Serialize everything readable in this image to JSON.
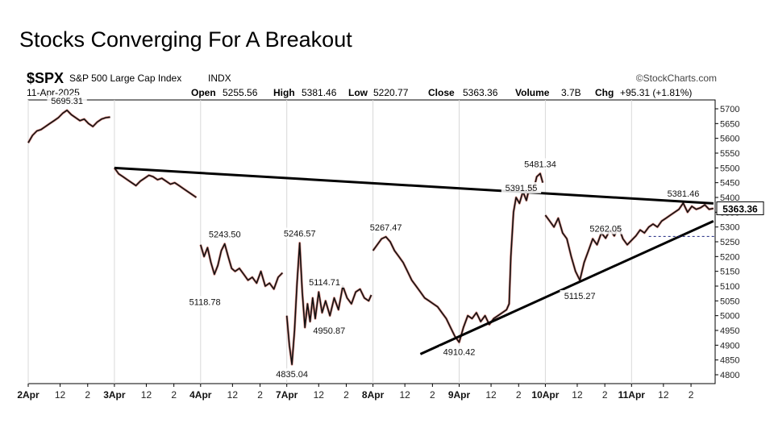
{
  "slide": {
    "title": "Stocks Converging For A Breakout"
  },
  "chart_data": {
    "type": "line",
    "symbol": "$SPX",
    "name": "S&P 500 Large Cap Index",
    "exchange": "INDX",
    "date": "11-Apr-2025",
    "source": "©StockCharts.com",
    "ohlc": {
      "open_label": "Open",
      "open": "5255.56",
      "high_label": "High",
      "high": "5381.46",
      "low_label": "Low",
      "low": "5220.77",
      "close_label": "Close",
      "close": "5363.36",
      "volume_label": "Volume",
      "volume": "3.7B",
      "chg_label": "Chg",
      "chg": "+95.31 (+1.81%)"
    },
    "last_price": "5363.36",
    "ylim": [
      4770,
      5730
    ],
    "y_ticks": [
      5700,
      5650,
      5600,
      5550,
      5500,
      5450,
      5400,
      5350,
      5300,
      5250,
      5200,
      5150,
      5100,
      5050,
      5000,
      4950,
      4900,
      4850,
      4800
    ],
    "x_ticks": [
      {
        "label": "2Apr",
        "t": 0.0,
        "bold": true
      },
      {
        "label": "12",
        "t": 0.37
      },
      {
        "label": "2",
        "t": 0.69
      },
      {
        "label": "3Apr",
        "t": 1.0,
        "bold": true
      },
      {
        "label": "12",
        "t": 1.37
      },
      {
        "label": "2",
        "t": 1.69
      },
      {
        "label": "4Apr",
        "t": 2.0,
        "bold": true
      },
      {
        "label": "12",
        "t": 2.37
      },
      {
        "label": "2",
        "t": 2.69
      },
      {
        "label": "7Apr",
        "t": 3.0,
        "bold": true
      },
      {
        "label": "12",
        "t": 3.37
      },
      {
        "label": "2",
        "t": 3.69
      },
      {
        "label": "8Apr",
        "t": 4.0,
        "bold": true
      },
      {
        "label": "12",
        "t": 4.37
      },
      {
        "label": "2",
        "t": 4.69
      },
      {
        "label": "9Apr",
        "t": 5.0,
        "bold": true
      },
      {
        "label": "12",
        "t": 5.37
      },
      {
        "label": "2",
        "t": 5.69
      },
      {
        "label": "10Apr",
        "t": 6.0,
        "bold": true
      },
      {
        "label": "12",
        "t": 6.37
      },
      {
        "label": "2",
        "t": 6.69
      },
      {
        "label": "11Apr",
        "t": 7.0,
        "bold": true
      },
      {
        "label": "12",
        "t": 7.37
      },
      {
        "label": "2",
        "t": 7.69
      }
    ],
    "xlim": [
      0,
      7.97
    ],
    "series": [
      {
        "segments": [
          [
            [
              0.0,
              5585
            ],
            [
              0.05,
              5610
            ],
            [
              0.1,
              5625
            ],
            [
              0.15,
              5630
            ],
            [
              0.2,
              5640
            ],
            [
              0.25,
              5650
            ],
            [
              0.3,
              5660
            ],
            [
              0.35,
              5670
            ],
            [
              0.4,
              5685
            ],
            [
              0.45,
              5695
            ],
            [
              0.5,
              5680
            ],
            [
              0.55,
              5670
            ],
            [
              0.6,
              5660
            ],
            [
              0.65,
              5665
            ],
            [
              0.7,
              5650
            ],
            [
              0.75,
              5640
            ],
            [
              0.8,
              5655
            ],
            [
              0.85,
              5665
            ],
            [
              0.9,
              5670
            ],
            [
              0.95,
              5672
            ]
          ],
          [
            [
              1.0,
              5500
            ],
            [
              1.05,
              5480
            ],
            [
              1.1,
              5470
            ],
            [
              1.15,
              5460
            ],
            [
              1.2,
              5450
            ],
            [
              1.25,
              5440
            ],
            [
              1.3,
              5455
            ],
            [
              1.35,
              5465
            ],
            [
              1.4,
              5475
            ],
            [
              1.45,
              5470
            ],
            [
              1.5,
              5460
            ],
            [
              1.55,
              5465
            ],
            [
              1.6,
              5455
            ],
            [
              1.65,
              5445
            ],
            [
              1.7,
              5450
            ],
            [
              1.75,
              5440
            ],
            [
              1.8,
              5430
            ],
            [
              1.85,
              5420
            ],
            [
              1.9,
              5410
            ],
            [
              1.95,
              5400
            ]
          ],
          [
            [
              2.0,
              5240
            ],
            [
              2.04,
              5200
            ],
            [
              2.08,
              5230
            ],
            [
              2.12,
              5180
            ],
            [
              2.16,
              5140
            ],
            [
              2.2,
              5170
            ],
            [
              2.24,
              5220
            ],
            [
              2.28,
              5243
            ],
            [
              2.32,
              5200
            ],
            [
              2.36,
              5160
            ],
            [
              2.4,
              5150
            ],
            [
              2.45,
              5160
            ],
            [
              2.5,
              5140
            ],
            [
              2.55,
              5120
            ],
            [
              2.6,
              5130
            ],
            [
              2.65,
              5110
            ],
            [
              2.7,
              5150
            ],
            [
              2.75,
              5100
            ],
            [
              2.8,
              5110
            ],
            [
              2.85,
              5090
            ],
            [
              2.9,
              5130
            ],
            [
              2.95,
              5145
            ]
          ],
          [
            [
              3.0,
              5000
            ],
            [
              3.03,
              4900
            ],
            [
              3.06,
              4835
            ],
            [
              3.09,
              4950
            ],
            [
              3.12,
              5114
            ],
            [
              3.15,
              5246
            ],
            [
              3.18,
              5080
            ],
            [
              3.21,
              4960
            ],
            [
              3.24,
              5040
            ],
            [
              3.27,
              4980
            ],
            [
              3.3,
              5060
            ],
            [
              3.33,
              4990
            ],
            [
              3.37,
              5080
            ],
            [
              3.41,
              5010
            ],
            [
              3.45,
              5050
            ],
            [
              3.5,
              5000
            ],
            [
              3.55,
              5060
            ],
            [
              3.6,
              5020
            ],
            [
              3.65,
              5100
            ],
            [
              3.7,
              5060
            ],
            [
              3.75,
              5040
            ],
            [
              3.8,
              5080
            ],
            [
              3.85,
              5090
            ],
            [
              3.9,
              5060
            ],
            [
              3.95,
              5050
            ],
            [
              3.98,
              5070
            ]
          ],
          [
            [
              4.0,
              5220
            ],
            [
              4.05,
              5240
            ],
            [
              4.1,
              5260
            ],
            [
              4.15,
              5267
            ],
            [
              4.2,
              5250
            ],
            [
              4.25,
              5220
            ],
            [
              4.3,
              5200
            ],
            [
              4.35,
              5180
            ],
            [
              4.4,
              5150
            ],
            [
              4.45,
              5120
            ],
            [
              4.5,
              5100
            ],
            [
              4.55,
              5080
            ],
            [
              4.6,
              5060
            ],
            [
              4.65,
              5050
            ],
            [
              4.7,
              5040
            ],
            [
              4.75,
              5030
            ],
            [
              4.8,
              5010
            ],
            [
              4.85,
              4990
            ],
            [
              4.9,
              4960
            ],
            [
              4.95,
              4930
            ],
            [
              5.0,
              4910
            ],
            [
              5.05,
              4960
            ],
            [
              5.1,
              5000
            ],
            [
              5.15,
              4990
            ],
            [
              5.2,
              5010
            ],
            [
              5.25,
              4980
            ],
            [
              5.3,
              5000
            ],
            [
              5.35,
              4970
            ],
            [
              5.4,
              4990
            ],
            [
              5.45,
              5000
            ],
            [
              5.5,
              5010
            ],
            [
              5.55,
              5020
            ],
            [
              5.58,
              5040
            ],
            [
              5.6,
              5200
            ],
            [
              5.63,
              5350
            ],
            [
              5.66,
              5400
            ],
            [
              5.7,
              5380
            ],
            [
              5.74,
              5420
            ],
            [
              5.78,
              5390
            ],
            [
              5.82,
              5440
            ],
            [
              5.86,
              5420
            ],
            [
              5.9,
              5470
            ],
            [
              5.94,
              5481
            ],
            [
              5.97,
              5450
            ]
          ],
          [
            [
              6.0,
              5340
            ],
            [
              6.05,
              5320
            ],
            [
              6.1,
              5300
            ],
            [
              6.15,
              5330
            ],
            [
              6.2,
              5280
            ],
            [
              6.25,
              5260
            ],
            [
              6.3,
              5200
            ],
            [
              6.35,
              5150
            ],
            [
              6.4,
              5120
            ],
            [
              6.45,
              5180
            ],
            [
              6.5,
              5220
            ],
            [
              6.55,
              5260
            ],
            [
              6.6,
              5240
            ],
            [
              6.65,
              5280
            ],
            [
              6.7,
              5262
            ],
            [
              6.75,
              5290
            ],
            [
              6.8,
              5270
            ],
            [
              6.85,
              5300
            ],
            [
              6.9,
              5260
            ],
            [
              6.95,
              5240
            ],
            [
              7.0,
              5255
            ],
            [
              7.05,
              5270
            ],
            [
              7.1,
              5290
            ],
            [
              7.15,
              5280
            ],
            [
              7.2,
              5300
            ],
            [
              7.25,
              5310
            ],
            [
              7.3,
              5300
            ],
            [
              7.35,
              5320
            ],
            [
              7.4,
              5330
            ],
            [
              7.45,
              5340
            ],
            [
              7.5,
              5350
            ],
            [
              7.55,
              5360
            ],
            [
              7.6,
              5381
            ],
            [
              7.65,
              5350
            ],
            [
              7.7,
              5370
            ],
            [
              7.75,
              5360
            ],
            [
              7.8,
              5365
            ],
            [
              7.85,
              5375
            ],
            [
              7.9,
              5360
            ],
            [
              7.95,
              5363
            ]
          ]
        ]
      }
    ],
    "data_labels": [
      {
        "text": "5695.31",
        "x": 0.45,
        "y": 5695,
        "pos": "above"
      },
      {
        "text": "5243.50",
        "x": 2.28,
        "y": 5243,
        "pos": "above"
      },
      {
        "text": "5118.78",
        "x": 2.05,
        "y": 5080,
        "pos": "below"
      },
      {
        "text": "5246.57",
        "x": 3.15,
        "y": 5246,
        "pos": "above"
      },
      {
        "text": "5114.71",
        "x": 3.2,
        "y": 5114,
        "pos": "right"
      },
      {
        "text": "4950.87",
        "x": 3.25,
        "y": 4950,
        "pos": "right"
      },
      {
        "text": "4835.04",
        "x": 3.06,
        "y": 4835,
        "pos": "below"
      },
      {
        "text": "5267.47",
        "x": 4.15,
        "y": 5267,
        "pos": "above"
      },
      {
        "text": "4910.42",
        "x": 5.0,
        "y": 4910,
        "pos": "below"
      },
      {
        "text": "5391.55",
        "x": 5.72,
        "y": 5400,
        "pos": "above"
      },
      {
        "text": "5481.34",
        "x": 5.94,
        "y": 5481,
        "pos": "above"
      },
      {
        "text": "5262.05",
        "x": 6.7,
        "y": 5262,
        "pos": "above"
      },
      {
        "text": "5115.27",
        "x": 6.4,
        "y": 5100,
        "pos": "below"
      },
      {
        "text": "5381.46",
        "x": 7.6,
        "y": 5381,
        "pos": "above"
      }
    ],
    "trendlines": [
      {
        "x1": 1.0,
        "y1": 5500,
        "x2": 7.95,
        "y2": 5380
      },
      {
        "x1": 4.55,
        "y1": 4870,
        "x2": 7.95,
        "y2": 5320
      }
    ]
  }
}
